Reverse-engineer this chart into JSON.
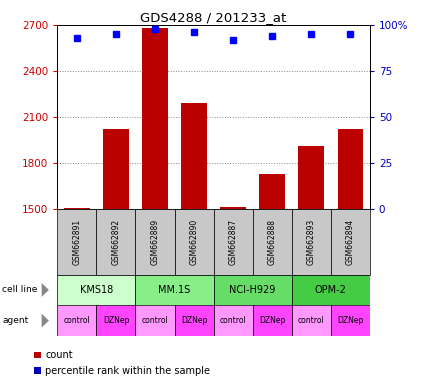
{
  "title": "GDS4288 / 201233_at",
  "samples": [
    "GSM662891",
    "GSM662892",
    "GSM662889",
    "GSM662890",
    "GSM662887",
    "GSM662888",
    "GSM662893",
    "GSM662894"
  ],
  "counts": [
    1510,
    2020,
    2680,
    2190,
    1515,
    1730,
    1910,
    2020
  ],
  "percentile_ranks": [
    93,
    95,
    98,
    96,
    92,
    94,
    95,
    95
  ],
  "ylim_left": [
    1500,
    2700
  ],
  "ylim_right": [
    0,
    100
  ],
  "yticks_left": [
    1500,
    1800,
    2100,
    2400,
    2700
  ],
  "yticks_right": [
    0,
    25,
    50,
    75,
    100
  ],
  "bar_color": "#bb0000",
  "dot_color": "#0000bb",
  "cell_lines": [
    {
      "label": "KMS18",
      "span": [
        0,
        2
      ],
      "color": "#ccffcc"
    },
    {
      "label": "MM.1S",
      "span": [
        2,
        4
      ],
      "color": "#88ee88"
    },
    {
      "label": "NCI-H929",
      "span": [
        4,
        6
      ],
      "color": "#66dd66"
    },
    {
      "label": "OPM-2",
      "span": [
        6,
        8
      ],
      "color": "#44cc44"
    }
  ],
  "agents": [
    "control",
    "DZNep",
    "control",
    "DZNep",
    "control",
    "DZNep",
    "control",
    "DZNep"
  ],
  "agent_color_control": "#ff99ff",
  "agent_color_dznep": "#ff44ff",
  "xlabel_color": "#cc0000",
  "ylabel_right_color": "#0000cc",
  "grid_color": "#888888",
  "sample_box_color": "#c8c8c8",
  "background_color": "#ffffff"
}
